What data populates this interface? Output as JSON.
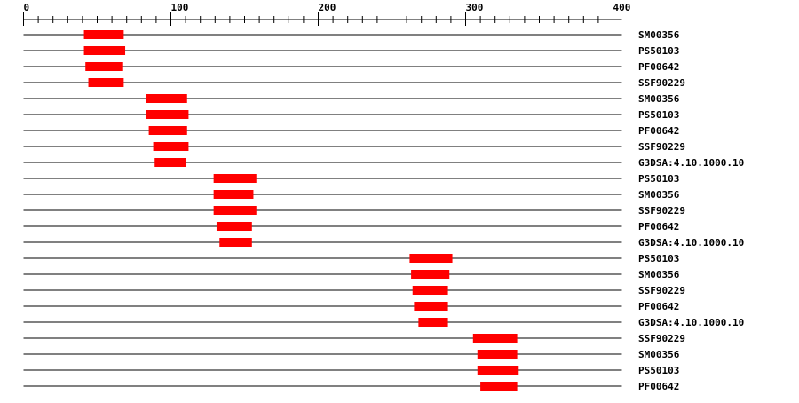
{
  "chart_data": {
    "type": "feature-map",
    "axis": {
      "min": 0,
      "max": 400,
      "major_ticks": [
        0,
        100,
        200,
        300,
        400
      ],
      "minor_step": 10
    },
    "sequence_length": 406,
    "bar_color": "#ff0000",
    "rows": [
      {
        "label": "SM00356",
        "start": 41,
        "end": 68
      },
      {
        "label": "PS50103",
        "start": 41,
        "end": 69
      },
      {
        "label": "PF00642",
        "start": 42,
        "end": 67
      },
      {
        "label": "SSF90229",
        "start": 44,
        "end": 68
      },
      {
        "label": "SM00356",
        "start": 83,
        "end": 111
      },
      {
        "label": "PS50103",
        "start": 83,
        "end": 112
      },
      {
        "label": "PF00642",
        "start": 85,
        "end": 111
      },
      {
        "label": "SSF90229",
        "start": 88,
        "end": 112
      },
      {
        "label": "G3DSA:4.10.1000.10",
        "start": 89,
        "end": 110
      },
      {
        "label": "PS50103",
        "start": 129,
        "end": 158
      },
      {
        "label": "SM00356",
        "start": 129,
        "end": 156
      },
      {
        "label": "SSF90229",
        "start": 129,
        "end": 158
      },
      {
        "label": "PF00642",
        "start": 131,
        "end": 155
      },
      {
        "label": "G3DSA:4.10.1000.10",
        "start": 133,
        "end": 155
      },
      {
        "label": "PS50103",
        "start": 262,
        "end": 291
      },
      {
        "label": "SM00356",
        "start": 263,
        "end": 289
      },
      {
        "label": "SSF90229",
        "start": 264,
        "end": 288
      },
      {
        "label": "PF00642",
        "start": 265,
        "end": 288
      },
      {
        "label": "G3DSA:4.10.1000.10",
        "start": 268,
        "end": 288
      },
      {
        "label": "SSF90229",
        "start": 305,
        "end": 335
      },
      {
        "label": "SM00356",
        "start": 308,
        "end": 335
      },
      {
        "label": "PS50103",
        "start": 308,
        "end": 336
      },
      {
        "label": "PF00642",
        "start": 310,
        "end": 335
      }
    ]
  }
}
